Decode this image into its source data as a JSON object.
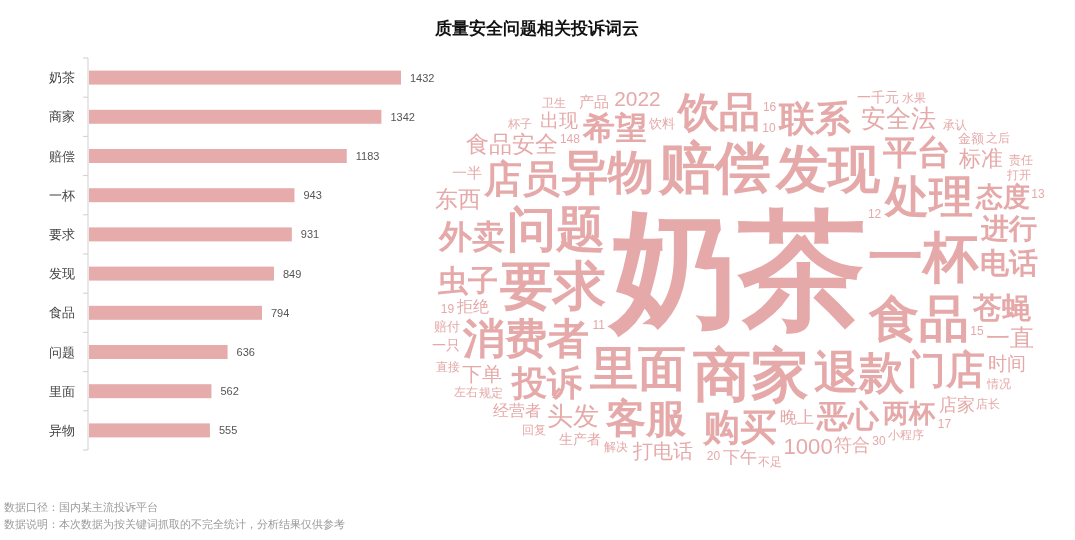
{
  "chart_data": [
    {
      "type": "bar",
      "orientation": "horizontal",
      "categories": [
        "奶茶",
        "商家",
        "赔偿",
        "一杯",
        "要求",
        "发现",
        "食品",
        "问题",
        "里面",
        "异物"
      ],
      "values": [
        1432,
        1342,
        1183,
        943,
        931,
        849,
        794,
        636,
        562,
        555
      ],
      "color": "#e6acac",
      "data_labels": true,
      "annotations": [
        "数据口径：国内某主流投诉平台",
        "数据说明：本次数据为按关键词抓取的不完全统计，分析结果仅供参考"
      ]
    },
    {
      "type": "other",
      "title": "质量安全问题相关投诉词云",
      "color": "#e6a9a9",
      "categories": [
        "奶茶",
        "商家",
        "赔偿",
        "一杯",
        "要求",
        "发现",
        "食品",
        "问题",
        "里面",
        "异物",
        "退款",
        "处理",
        "消费者",
        "饮品",
        "客服",
        "门店",
        "店员",
        "购买",
        "联系",
        "投诉",
        "平台",
        "外卖",
        "希望",
        "恶心",
        "虫子",
        "苍蝇",
        "电话",
        "进行",
        "态度",
        "两杯",
        "头发",
        "安全法",
        "一直",
        "食品安全",
        "东西",
        "1000",
        "标准",
        "2022",
        "打电话",
        "下单",
        "出现",
        "时间",
        "店家",
        "符合",
        "晚上",
        "下午",
        "拒绝",
        "经营者",
        "一半",
        "产品",
        "一千元",
        "生产者",
        "一只",
        "饮料",
        "赔付",
        "金额",
        "规定",
        "打开",
        "小程序",
        "情况",
        "解决",
        "不足",
        "承认",
        "杯子",
        "直接",
        "店长",
        "卫生",
        "责任",
        "148",
        "12",
        "11",
        "10",
        "15",
        "16",
        "19",
        "20",
        "30",
        "13",
        "17",
        "回复",
        "水果",
        "左右",
        "之后"
      ]
    }
  ]
}
